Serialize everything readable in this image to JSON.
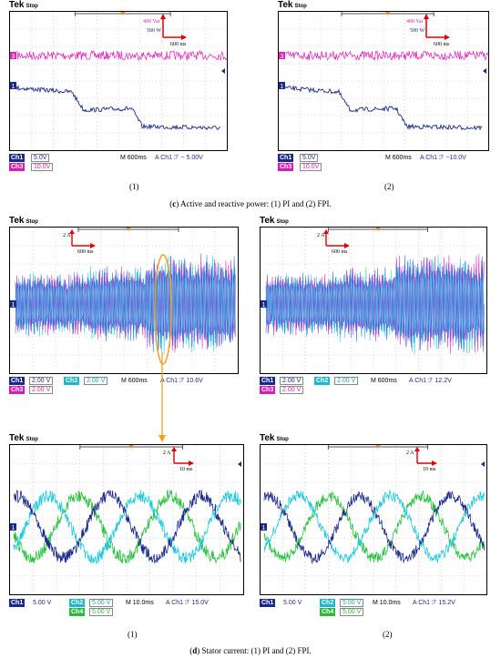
{
  "figure": {
    "caption_c": {
      "label": "c",
      "text": " Active and reactive power: (1) PI and (2) FPI."
    },
    "caption_d": {
      "label": "d",
      "text": " Stator current: (1) PI and (2) FPI."
    },
    "sublabels": {
      "left": "(1)",
      "right": "(2)"
    }
  },
  "scopes": {
    "tek_label": "Tek",
    "stop_label": "Stop",
    "p1": {
      "scale_p": "400 Var",
      "scale_q": "500 W",
      "time_scale": "600 ms",
      "ch_a_label": "Ch1",
      "ch_a_val": "5.0V",
      "ch_b_label": "Ch3",
      "ch_b_val": "10.0V",
      "timebase": "M 600ms",
      "trig": "A  Ch1  ℱ − 5.00V"
    },
    "p2": {
      "scale_p": "400 Var",
      "scale_q": "500 W",
      "time_scale": "600 ms",
      "ch_a_label": "Ch1",
      "ch_a_val": "5.0V",
      "ch_b_label": "Ch3",
      "ch_b_val": "10.0V",
      "timebase": "M 600ms",
      "trig": "A  Ch1  ℱ −10.0V"
    },
    "c1": {
      "amp_scale": "2 A",
      "time_scale": "600 ms",
      "ch_a_label": "Ch1",
      "ch_a_val": "2.00 V",
      "ch_b_label": "Ch2",
      "ch_b_val": "2.00 V",
      "ch_c_label": "Ch3",
      "ch_c_val": "2.00 V",
      "timebase": "M 600ms",
      "trig": "A  Ch1  ℱ  10.6V"
    },
    "c2": {
      "amp_scale": "2 A",
      "time_scale": "600 ms",
      "ch_a_label": "Ch1",
      "ch_a_val": "2.00 V",
      "ch_b_label": "Ch2",
      "ch_b_val": "2.00 V",
      "ch_c_label": "Ch3",
      "ch_c_val": "2.00 V",
      "timebase": "M 600ms",
      "trig": "A  Ch1  ℱ  12.2V"
    },
    "z1": {
      "amp_scale": "2 A",
      "time_scale": "10 ms",
      "ch_a_label": "Ch1",
      "ch_a_val": "5.00 V",
      "ch_b_label": "Ch2",
      "ch_b_val": "5.00 V",
      "ch_d_label": "Ch4",
      "ch_d_val": "5.00 V",
      "timebase": "M 10.0ms",
      "trig": "A  Ch1  ℱ  15.0V"
    },
    "z2": {
      "amp_scale": "2 A",
      "time_scale": "10 ms",
      "ch_a_label": "Ch1",
      "ch_a_val": "5.00 V",
      "ch_b_label": "Ch2",
      "ch_b_val": "5.00 V",
      "ch_d_label": "Ch4",
      "ch_d_val": "5.00 V",
      "timebase": "M 10.0ms",
      "trig": "A  Ch1  ℱ  15.2V"
    }
  },
  "colors": {
    "ch1": "#1b2a8a",
    "ch2": "#20c8dc",
    "ch3": "#e020c0",
    "ch4": "#2bc040",
    "scale_arrow": "#e00000",
    "highlight": "#f0a020"
  }
}
